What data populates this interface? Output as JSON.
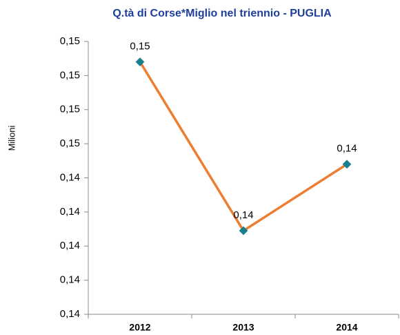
{
  "chart_data": {
    "type": "line",
    "title": "Q.tà di Corse*Miglio nel triennio - PUGLIA",
    "y_label": "Milioni",
    "categories": [
      "2012",
      "2013",
      "2014"
    ],
    "series": [
      {
        "color": "#ed7d31",
        "marker_color": "#17808f",
        "values": [
          0.14548,
          0.14449,
          0.14488
        ],
        "value_labels": [
          "0,15",
          "0,14",
          "0,14"
        ]
      }
    ],
    "ylim": [
      0.144,
      0.1456
    ],
    "yticks": [
      {
        "value": 0.144,
        "label": "0,14"
      },
      {
        "value": 0.1442,
        "label": "0,14"
      },
      {
        "value": 0.1444,
        "label": "0,14"
      },
      {
        "value": 0.1446,
        "label": "0,14"
      },
      {
        "value": 0.1448,
        "label": "0,14"
      },
      {
        "value": 0.145,
        "label": "0,15"
      },
      {
        "value": 0.1452,
        "label": "0,15"
      },
      {
        "value": 0.1454,
        "label": "0,15"
      },
      {
        "value": 0.1456,
        "label": "0,15"
      }
    ]
  }
}
